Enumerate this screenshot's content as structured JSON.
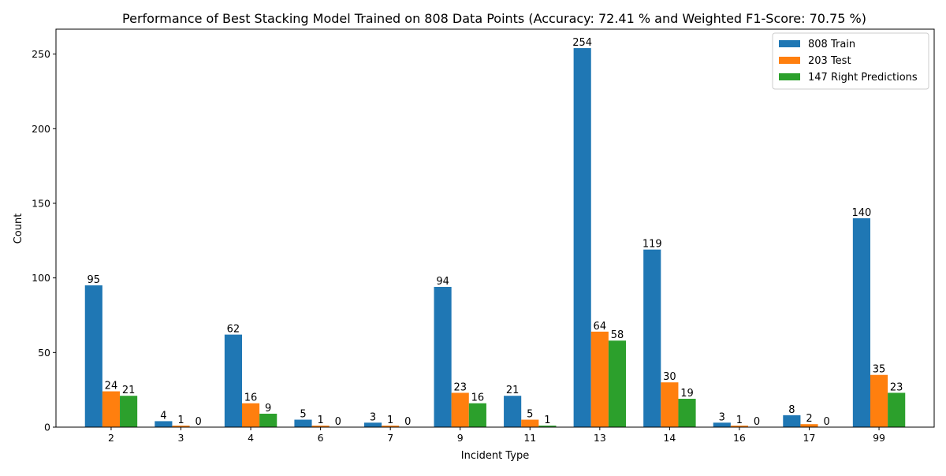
{
  "chart_data": {
    "type": "bar",
    "title": "Performance of Best Stacking Model Trained on 808 Data Points (Accuracy: 72.41 % and Weighted F1-Score: 70.75 %)",
    "xlabel": "Incident Type",
    "ylabel": "Count",
    "categories": [
      "2",
      "3",
      "4",
      "6",
      "7",
      "9",
      "11",
      "13",
      "14",
      "16",
      "17",
      "99"
    ],
    "series": [
      {
        "name": "808 Train",
        "color": "#1f77b4",
        "values": [
          95,
          4,
          62,
          5,
          3,
          94,
          21,
          254,
          119,
          3,
          8,
          140
        ]
      },
      {
        "name": "203 Test",
        "color": "#ff7f0e",
        "values": [
          24,
          1,
          16,
          1,
          1,
          23,
          5,
          64,
          30,
          1,
          2,
          35
        ]
      },
      {
        "name": "147 Right Predictions",
        "color": "#2ca02c",
        "values": [
          21,
          0,
          9,
          0,
          0,
          16,
          1,
          58,
          19,
          0,
          0,
          23
        ]
      }
    ],
    "ylim": [
      0,
      266.7
    ],
    "yticks": [
      0,
      50,
      100,
      150,
      200,
      250
    ],
    "grid": false,
    "legend_position": "top-right"
  }
}
